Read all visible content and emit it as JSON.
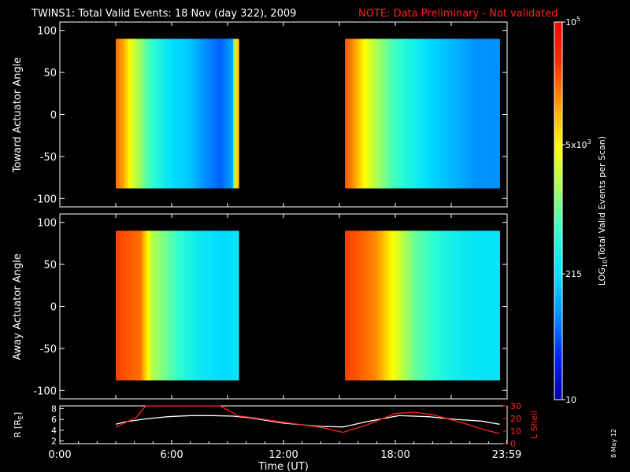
{
  "title": {
    "main": "TWINS1: Total Valid Events: 18 Nov (day 322), 2009",
    "note": "NOTE: Data Preliminary - Not validated"
  },
  "colors": {
    "background": "#000000",
    "text": "#ffffff",
    "note": "#ff2020",
    "lshell": "#ff2020",
    "radius": "#ffffff"
  },
  "colorbar": {
    "label": "LOG10(Total Valid Events per Scan)",
    "label_base": "LOG",
    "label_sub": "10",
    "label_rest": "(Total Valid Events per Scan)",
    "colormap": [
      "#0000a0",
      "#0020ff",
      "#0090ff",
      "#00e0ff",
      "#30ffd0",
      "#a0ff60",
      "#ffff00",
      "#ffa000",
      "#ff3000",
      "#ff0000"
    ],
    "range": [
      10,
      100000
    ],
    "scale": "log",
    "ticks": [
      {
        "value": 100000,
        "label": "10",
        "sup": "5"
      },
      {
        "value": 5000,
        "label": "5x10",
        "sup": "3"
      },
      {
        "value": 215,
        "label": "215",
        "sup": ""
      },
      {
        "value": 10,
        "label": "10",
        "sup": ""
      }
    ]
  },
  "chart_data": [
    {
      "type": "heatmap",
      "panel": "top",
      "ylabel": "Toward Actuator Angle",
      "ylim": [
        -110,
        110
      ],
      "yticks": [
        "100",
        "50",
        "0",
        "-50",
        "-100"
      ],
      "ytick_values": [
        100,
        50,
        0,
        -50,
        -100
      ],
      "xlim": [
        0,
        24
      ],
      "y_extent": [
        -88,
        90
      ],
      "blocks": [
        {
          "x_start": 3.0,
          "x_end": 9.6,
          "profile": [
            [
              0,
              4.3
            ],
            [
              0.06,
              4.1
            ],
            [
              0.12,
              3.6
            ],
            [
              0.18,
              3.3
            ],
            [
              0.26,
              2.9
            ],
            [
              0.36,
              2.6
            ],
            [
              0.48,
              2.3
            ],
            [
              0.6,
              2.2
            ],
            [
              0.72,
              1.9
            ],
            [
              0.85,
              1.7
            ],
            [
              0.95,
              2.0
            ],
            [
              0.97,
              3.8
            ],
            [
              1,
              3.9
            ]
          ]
        },
        {
          "x_start": 15.3,
          "x_end": 23.6,
          "profile": [
            [
              0,
              4.4
            ],
            [
              0.05,
              4.2
            ],
            [
              0.12,
              3.7
            ],
            [
              0.2,
              3.3
            ],
            [
              0.3,
              2.9
            ],
            [
              0.42,
              2.6
            ],
            [
              0.55,
              2.3
            ],
            [
              0.7,
              2.1
            ],
            [
              0.85,
              1.9
            ],
            [
              1,
              1.9
            ]
          ]
        }
      ]
    },
    {
      "type": "heatmap",
      "panel": "bottom",
      "ylabel": "Away Actuator Angle",
      "ylim": [
        -110,
        110
      ],
      "yticks": [
        "100",
        "50",
        "0",
        "-50",
        "-100"
      ],
      "ytick_values": [
        100,
        50,
        0,
        -50,
        -100
      ],
      "xlim": [
        0,
        24
      ],
      "y_extent": [
        -88,
        90
      ],
      "blocks": [
        {
          "x_start": 3.0,
          "x_end": 9.6,
          "profile": [
            [
              0,
              4.5
            ],
            [
              0.1,
              4.4
            ],
            [
              0.2,
              4.3
            ],
            [
              0.3,
              3.3
            ],
            [
              0.42,
              3.0
            ],
            [
              0.55,
              2.7
            ],
            [
              0.65,
              2.5
            ],
            [
              0.75,
              2.4
            ],
            [
              0.88,
              2.3
            ],
            [
              1,
              2.4
            ]
          ]
        },
        {
          "x_start": 15.3,
          "x_end": 23.6,
          "profile": [
            [
              0,
              4.5
            ],
            [
              0.08,
              4.4
            ],
            [
              0.2,
              4.2
            ],
            [
              0.32,
              3.6
            ],
            [
              0.45,
              3.0
            ],
            [
              0.6,
              2.7
            ],
            [
              0.72,
              2.5
            ],
            [
              0.85,
              2.4
            ],
            [
              1,
              2.4
            ]
          ]
        }
      ]
    },
    {
      "type": "line",
      "panel": "orbit",
      "xlabel": "Time (UT)",
      "xlim": [
        0,
        24
      ],
      "xticks": [
        "0:00",
        "6:00",
        "12:00",
        "18:00",
        "23:59"
      ],
      "xtick_values": [
        0,
        6,
        12,
        18,
        23.98
      ],
      "left_axis": {
        "label": "R [RE]",
        "label_base": "R [R",
        "label_sub": "E",
        "label_end": "]",
        "ylim": [
          1.5,
          8.5
        ],
        "ticks": [
          "8",
          "6",
          "4",
          "2"
        ],
        "tick_values": [
          8,
          6,
          4,
          2
        ]
      },
      "right_axis": {
        "label": "L Shell",
        "ylim": [
          0,
          30
        ],
        "ticks": [
          "30",
          "20",
          "10",
          "0"
        ],
        "tick_values": [
          30,
          20,
          10,
          0
        ]
      },
      "series": [
        {
          "axis": "left",
          "color": "#ffffff",
          "x": [
            3.0,
            3.6,
            4.6,
            5.8,
            7.0,
            8.2,
            9.3,
            10.2,
            12.0,
            14.0,
            15.2,
            16.5,
            18.2,
            19.8,
            21.2,
            22.6,
            23.6
          ],
          "y": [
            5.1,
            5.6,
            6.1,
            6.5,
            6.7,
            6.7,
            6.6,
            6.3,
            5.3,
            4.7,
            4.6,
            5.6,
            6.7,
            6.5,
            6.0,
            5.7,
            5.1
          ]
        },
        {
          "axis": "right",
          "color": "#ff2020",
          "x": [
            3.0,
            4.1,
            4.6,
            8.6,
            9.6,
            10.2,
            12.0,
            14.0,
            15.2,
            16.5,
            18.0,
            19.0,
            20.0,
            21.5,
            22.8,
            23.6
          ],
          "y": [
            13,
            21,
            30,
            30,
            22,
            21,
            17,
            13,
            9,
            15,
            24,
            25,
            23,
            17,
            11,
            8
          ]
        }
      ]
    }
  ],
  "footer": {
    "date_stamp": "8 May 12"
  }
}
